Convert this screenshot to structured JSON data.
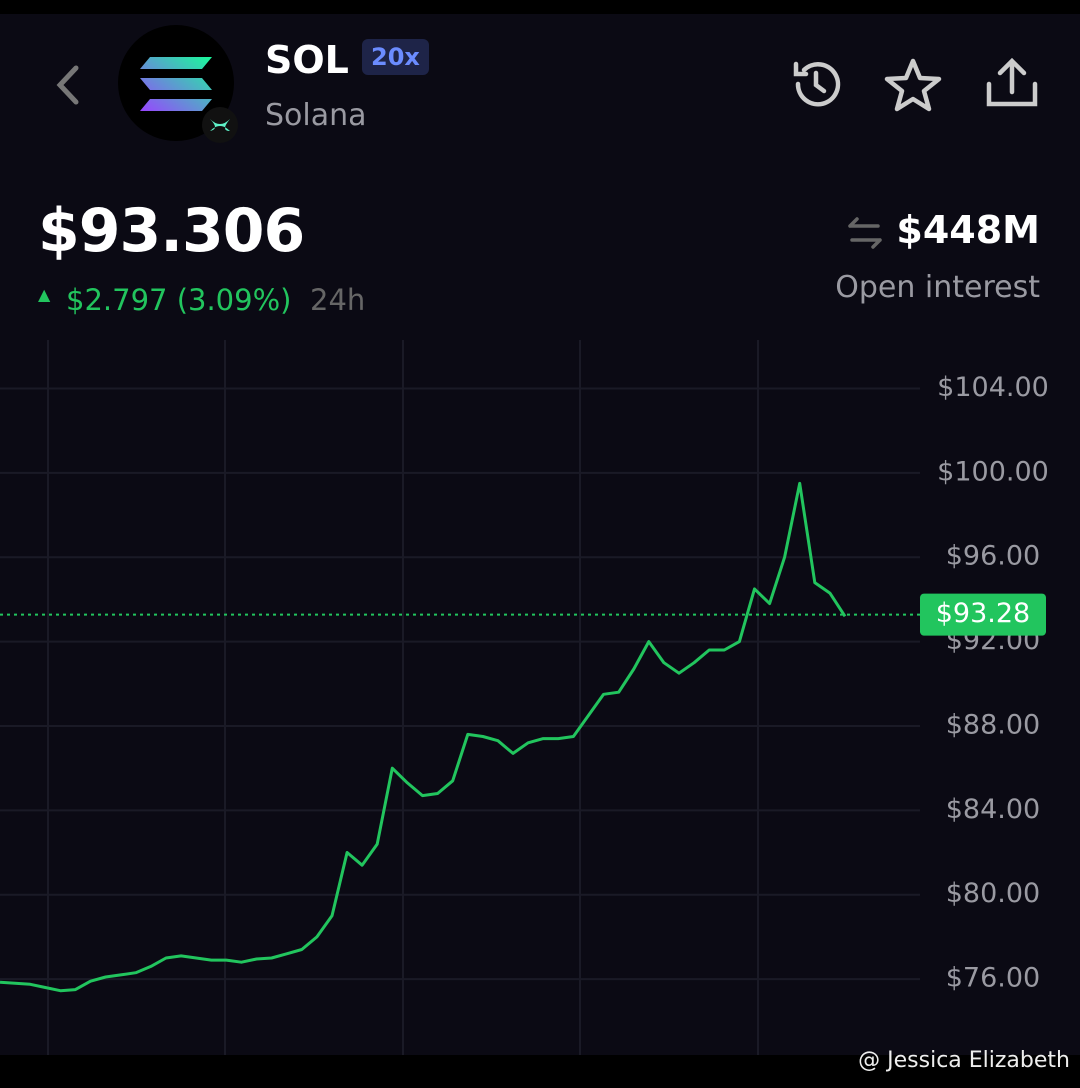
{
  "header": {
    "symbol": "SOL",
    "leverage": "20x",
    "name": "Solana"
  },
  "price": {
    "value": "$93.306",
    "change": "$2.797 (3.09%)",
    "period": "24h"
  },
  "open_interest": {
    "value": "$448M",
    "label": "Open interest"
  },
  "chart_data": {
    "type": "line",
    "color": "#22c55e",
    "values": [
      75.85,
      75.8,
      75.75,
      75.6,
      75.45,
      75.5,
      75.9,
      76.1,
      76.2,
      76.3,
      76.6,
      77.0,
      77.1,
      77.0,
      76.9,
      76.9,
      76.8,
      76.95,
      77.0,
      77.2,
      77.4,
      78.0,
      79.0,
      82.0,
      81.4,
      82.4,
      86.0,
      85.3,
      84.7,
      84.8,
      85.4,
      87.6,
      87.5,
      87.3,
      86.7,
      87.2,
      87.4,
      87.4,
      87.5,
      88.5,
      89.5,
      89.6,
      90.7,
      92.0,
      91.0,
      90.5,
      91.0,
      91.6,
      91.6,
      92.0,
      94.5,
      93.8,
      96.0,
      99.5,
      94.8,
      94.3,
      93.2
    ],
    "ylim": [
      72.4,
      106.3
    ],
    "yticks": [
      {
        "value": 76,
        "label": "$76.00"
      },
      {
        "value": 80,
        "label": "$80.00"
      },
      {
        "value": 84,
        "label": "$84.00"
      },
      {
        "value": 88,
        "label": "$88.00"
      },
      {
        "value": 92,
        "label": "$92.00"
      },
      {
        "value": 96,
        "label": "$96.00"
      },
      {
        "value": 100,
        "label": "$100.00"
      },
      {
        "value": 104,
        "label": "$104.00"
      }
    ],
    "current_price": {
      "value": 93.28,
      "label": "$93.28"
    },
    "grid": true
  },
  "watermark": "@ Jessica Elizabeth"
}
